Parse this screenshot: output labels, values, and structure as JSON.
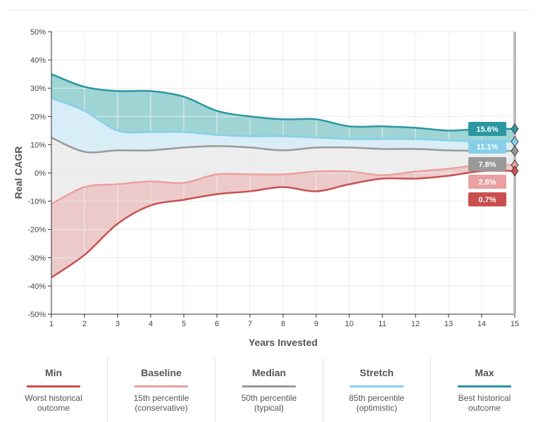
{
  "chart_data": {
    "type": "area",
    "xlabel": "Years Invested",
    "ylabel": "Real CAGR",
    "x": [
      1,
      2,
      3,
      4,
      5,
      6,
      7,
      8,
      9,
      10,
      11,
      12,
      13,
      14,
      15
    ],
    "xlim": [
      1,
      15
    ],
    "ylim": [
      -50,
      50
    ],
    "y_ticks": [
      50,
      40,
      30,
      20,
      10,
      0,
      -10,
      -20,
      -30,
      -40,
      -50
    ],
    "y_tick_labels": [
      "50%",
      "40%",
      "30%",
      "20%",
      "10%",
      "0%",
      "-10%",
      "-20%",
      "-30%",
      "-40%",
      "-50%"
    ],
    "x_tick_labels": [
      "1",
      "2",
      "3",
      "4",
      "5",
      "6",
      "7",
      "8",
      "9",
      "10",
      "11",
      "12",
      "13",
      "14",
      "15"
    ],
    "grid": true,
    "series": [
      {
        "name": "Max",
        "color": "#2a97a3",
        "values": [
          35,
          30.5,
          29,
          29,
          27,
          22,
          20,
          19,
          19,
          16.5,
          16.5,
          16,
          15,
          15.6,
          15.6
        ],
        "end_label": "15.6%"
      },
      {
        "name": "Stretch",
        "color": "#87cfe9",
        "values": [
          26.5,
          22,
          15,
          14.5,
          14.5,
          13.5,
          13,
          13,
          12.5,
          12,
          12,
          12,
          11.5,
          11.1,
          11.1
        ],
        "end_label": "11.1%"
      },
      {
        "name": "Median",
        "color": "#999999",
        "values": [
          12.5,
          7.5,
          8,
          8,
          9,
          9.5,
          9,
          8,
          9,
          9,
          8.5,
          8.5,
          8,
          7.8,
          7.8
        ],
        "end_label": "7.8%"
      },
      {
        "name": "Baseline",
        "color": "#eaa0a0",
        "values": [
          -11,
          -5,
          -4,
          -3,
          -3.5,
          -0.5,
          -0.5,
          -0.5,
          0.5,
          0.5,
          -0.8,
          0.5,
          1.5,
          2.8,
          2.8
        ],
        "end_label": "2.8%"
      },
      {
        "name": "Min",
        "color": "#c94f4f",
        "values": [
          -37,
          -29,
          -18,
          -11.5,
          -9.5,
          -7.5,
          -6.5,
          -5,
          -6.5,
          -4,
          -2,
          -2,
          -1,
          0.7,
          0.7
        ],
        "end_label": "0.7%"
      }
    ],
    "fills": [
      {
        "between": [
          "Max",
          "Stretch"
        ],
        "color": "#9fd4d4"
      },
      {
        "between": [
          "Stretch",
          "Median"
        ],
        "color": "#d7eef8"
      },
      {
        "between": [
          "Median",
          "Baseline"
        ],
        "color": "#ededed"
      },
      {
        "between": [
          "Baseline",
          "Min"
        ],
        "color": "#edcaca"
      }
    ]
  },
  "legend": [
    {
      "title": "Min",
      "color": "#c94f4f",
      "desc1": "Worst historical",
      "desc2": "outcome"
    },
    {
      "title": "Baseline",
      "color": "#eaa0a0",
      "desc1": "15th percentile",
      "desc2": "(conservative)"
    },
    {
      "title": "Median",
      "color": "#999999",
      "desc1": "50th percentile",
      "desc2": "(typical)"
    },
    {
      "title": "Stretch",
      "color": "#87cfe9",
      "desc1": "85th percentile",
      "desc2": "(optimistic)"
    },
    {
      "title": "Max",
      "color": "#2a97a3",
      "desc1": "Best historical",
      "desc2": "outcome"
    }
  ]
}
